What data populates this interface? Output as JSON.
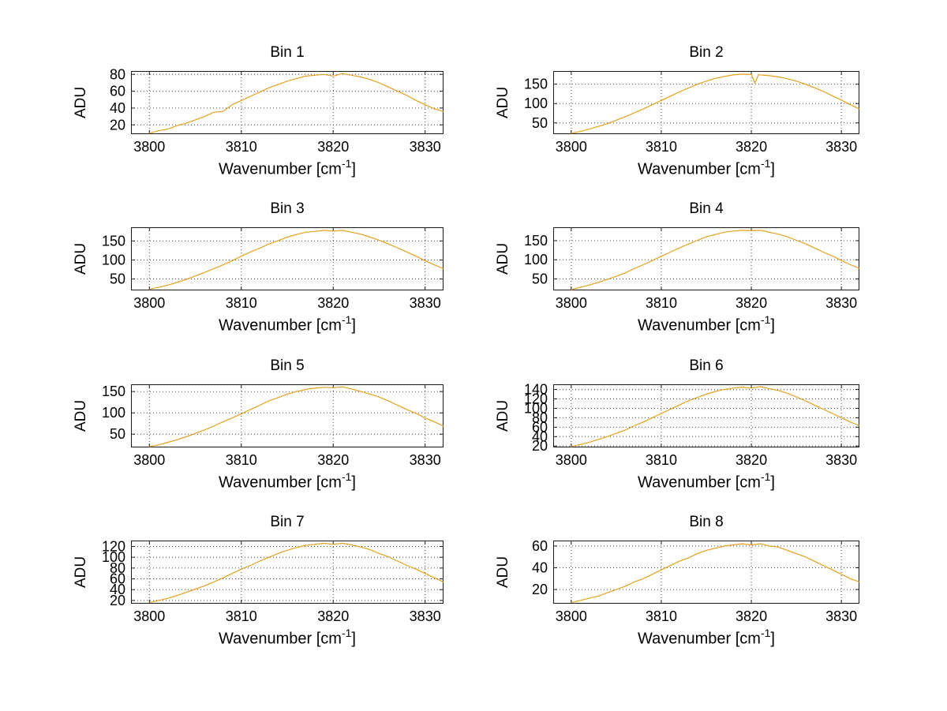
{
  "figure": {
    "background": "#FFFFFF",
    "line_color": "#E6A01E",
    "grid_color": "#4A4A4A",
    "axis_color": "#1A1A1A",
    "text_color": "#000000"
  },
  "chart_data": [
    {
      "type": "line",
      "title": "Bin 1",
      "ylabel": "ADU",
      "xlabel_prefix": "Wavenumber [cm",
      "xlabel_sup": "-1",
      "xlabel_suffix": "]",
      "grid": true,
      "xlim": [
        3798,
        3832
      ],
      "ylim": [
        9,
        84
      ],
      "xticks": [
        3800,
        3810,
        3820,
        3830
      ],
      "yticks": [
        20,
        40,
        60,
        80
      ],
      "x_start": 3800,
      "x_step": 1,
      "y": [
        10,
        13,
        15,
        19,
        22,
        26,
        30,
        35,
        36,
        44,
        49,
        54,
        59,
        64,
        68,
        72,
        75,
        78,
        79,
        80,
        78,
        81,
        79,
        77,
        74,
        70,
        65,
        60,
        55,
        49,
        44,
        39,
        36
      ]
    },
    {
      "type": "line",
      "title": "Bin 2",
      "ylabel": "ADU",
      "xlabel_prefix": "Wavenumber [cm",
      "xlabel_sup": "-1",
      "xlabel_suffix": "]",
      "grid": true,
      "xlim": [
        3798,
        3832
      ],
      "ylim": [
        21,
        184
      ],
      "xticks": [
        3800,
        3810,
        3820,
        3830
      ],
      "yticks": [
        50,
        100,
        150
      ],
      "x": [
        3800,
        3801,
        3802,
        3803,
        3804,
        3805,
        3806,
        3807,
        3808,
        3809,
        3810,
        3811,
        3812,
        3813,
        3814,
        3815,
        3816,
        3817,
        3818,
        3819,
        3820,
        3820.4,
        3820.8,
        3821,
        3822,
        3823,
        3824,
        3825,
        3826,
        3827,
        3828,
        3829,
        3830,
        3831,
        3832
      ],
      "y": [
        23,
        28,
        34,
        41,
        48,
        57,
        66,
        76,
        86,
        97,
        108,
        119,
        130,
        140,
        150,
        158,
        165,
        170,
        174,
        176,
        175,
        153,
        175,
        174,
        172,
        169,
        164,
        158,
        150,
        141,
        131,
        120,
        109,
        97,
        86
      ]
    },
    {
      "type": "line",
      "title": "Bin 3",
      "ylabel": "ADU",
      "xlabel_prefix": "Wavenumber [cm",
      "xlabel_sup": "-1",
      "xlabel_suffix": "]",
      "grid": true,
      "xlim": [
        3798,
        3832
      ],
      "ylim": [
        20,
        186
      ],
      "xticks": [
        3800,
        3810,
        3820,
        3830
      ],
      "yticks": [
        50,
        100,
        150
      ],
      "x_start": 3800,
      "x_step": 1,
      "y": [
        23,
        28,
        34,
        41,
        49,
        58,
        67,
        77,
        87,
        98,
        110,
        121,
        131,
        142,
        151,
        160,
        167,
        173,
        175,
        178,
        176,
        178,
        173,
        168,
        160,
        152,
        142,
        132,
        121,
        110,
        98,
        87,
        77
      ]
    },
    {
      "type": "line",
      "title": "Bin 4",
      "ylabel": "ADU",
      "xlabel_prefix": "Wavenumber [cm",
      "xlabel_sup": "-1",
      "xlabel_suffix": "]",
      "grid": true,
      "xlim": [
        3798,
        3832
      ],
      "ylim": [
        20,
        185
      ],
      "xticks": [
        3800,
        3810,
        3820,
        3830
      ],
      "yticks": [
        50,
        100,
        150
      ],
      "x_start": 3800,
      "x_step": 1,
      "y": [
        22,
        28,
        34,
        41,
        49,
        57,
        66,
        77,
        87,
        98,
        109,
        120,
        131,
        141,
        151,
        160,
        166,
        172,
        175,
        177,
        176,
        177,
        172,
        167,
        160,
        151,
        142,
        131,
        120,
        110,
        98,
        87,
        78
      ]
    },
    {
      "type": "line",
      "title": "Bin 5",
      "ylabel": "ADU",
      "xlabel_prefix": "Wavenumber [cm",
      "xlabel_sup": "-1",
      "xlabel_suffix": "]",
      "grid": true,
      "xlim": [
        3798,
        3832
      ],
      "ylim": [
        19,
        167
      ],
      "xticks": [
        3800,
        3810,
        3820,
        3830
      ],
      "yticks": [
        50,
        100,
        150
      ],
      "x_start": 3800,
      "x_step": 1,
      "y": [
        21,
        25,
        31,
        37,
        44,
        52,
        60,
        69,
        79,
        88,
        98,
        108,
        118,
        128,
        136,
        144,
        150,
        155,
        158,
        160,
        159,
        161,
        156,
        150,
        144,
        137,
        128,
        118,
        108,
        99,
        88,
        79,
        69
      ]
    },
    {
      "type": "line",
      "title": "Bin 6",
      "ylabel": "ADU",
      "xlabel_prefix": "Wavenumber [cm",
      "xlabel_sup": "-1",
      "xlabel_suffix": "]",
      "grid": true,
      "xlim": [
        3798,
        3832
      ],
      "ylim": [
        17,
        151
      ],
      "xticks": [
        3800,
        3810,
        3820,
        3830
      ],
      "yticks": [
        20,
        40,
        60,
        80,
        100,
        120,
        140
      ],
      "x_start": 3800,
      "x_step": 1,
      "y": [
        19,
        23,
        28,
        34,
        40,
        47,
        54,
        63,
        71,
        80,
        89,
        98,
        107,
        116,
        123,
        130,
        136,
        140,
        143,
        145,
        143,
        146,
        142,
        138,
        132,
        124,
        116,
        107,
        98,
        89,
        80,
        71,
        63
      ]
    },
    {
      "type": "line",
      "title": "Bin 7",
      "ylabel": "ADU",
      "xlabel_prefix": "Wavenumber [cm",
      "xlabel_sup": "-1",
      "xlabel_suffix": "]",
      "grid": true,
      "xlim": [
        3798,
        3832
      ],
      "ylim": [
        14,
        131
      ],
      "xticks": [
        3800,
        3810,
        3820,
        3830
      ],
      "yticks": [
        20,
        40,
        60,
        80,
        100,
        120
      ],
      "x_start": 3800,
      "x_step": 1,
      "y": [
        16,
        20,
        24,
        29,
        35,
        41,
        47,
        54,
        62,
        70,
        78,
        85,
        93,
        100,
        107,
        113,
        118,
        122,
        124,
        126,
        124,
        126,
        123,
        119,
        114,
        107,
        101,
        93,
        85,
        78,
        70,
        62,
        54
      ]
    },
    {
      "type": "line",
      "title": "Bin 8",
      "ylabel": "ADU",
      "xlabel_prefix": "Wavenumber [cm",
      "xlabel_sup": "-1",
      "xlabel_suffix": "]",
      "grid": true,
      "xlim": [
        3798,
        3832
      ],
      "ylim": [
        7,
        65
      ],
      "xticks": [
        3800,
        3810,
        3820,
        3830
      ],
      "yticks": [
        20,
        40,
        60
      ],
      "x_start": 3800,
      "x_step": 1,
      "y": [
        8,
        10,
        12,
        14,
        17,
        20,
        23,
        27,
        30,
        34,
        38,
        42,
        46,
        49,
        53,
        56,
        58,
        60,
        61,
        62,
        61,
        62,
        60,
        59,
        56,
        53,
        50,
        46,
        42,
        38,
        34,
        30,
        27
      ]
    }
  ]
}
